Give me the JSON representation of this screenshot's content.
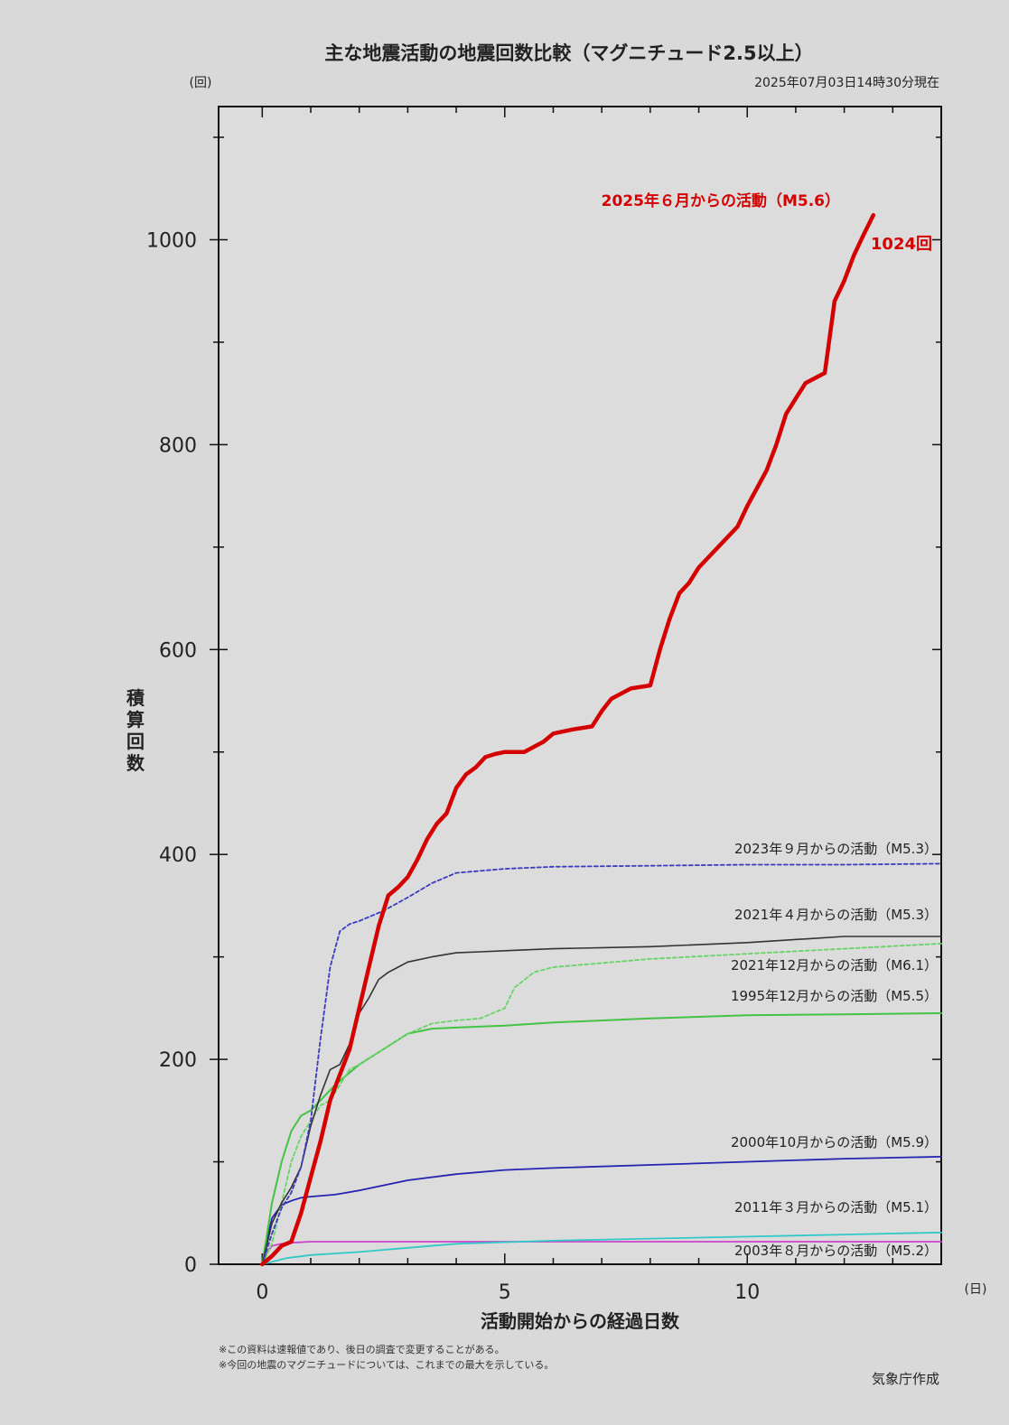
{
  "chart_data": {
    "type": "line",
    "title": "主な地震活動の地震回数比較（マグニチュード2.5以上）",
    "timestamp": "2025年07月03日14時30分現在",
    "xlabel": "活動開始からの経過日数",
    "ylabel": "積算回数",
    "x_unit": "(日)",
    "y_unit": "(回)",
    "xlim": [
      -0.9,
      14
    ],
    "ylim": [
      0,
      1130
    ],
    "x_ticks": [
      0,
      5,
      10
    ],
    "y_ticks": [
      0,
      200,
      400,
      600,
      800,
      1000
    ],
    "grid": false,
    "notes": [
      "※この資料は速報値であり、後日の調査で変更することがある。",
      "※今回の地震のマグニチュードについては、これまでの最大を示している。"
    ],
    "credit": "気象庁作成",
    "series": [
      {
        "name": "2025年６月からの活動（M5.6）",
        "end_label": "1024回",
        "color": "#d40000",
        "dash": "solid",
        "width": 4.5,
        "x": [
          0,
          0.2,
          0.4,
          0.6,
          0.8,
          1.0,
          1.2,
          1.4,
          1.6,
          1.8,
          2.0,
          2.2,
          2.4,
          2.6,
          2.8,
          3.0,
          3.2,
          3.4,
          3.6,
          3.8,
          4.0,
          4.2,
          4.4,
          4.6,
          4.8,
          5.0,
          5.4,
          5.8,
          6.0,
          6.4,
          6.8,
          7.0,
          7.2,
          7.6,
          8.0,
          8.2,
          8.4,
          8.6,
          8.8,
          9.0,
          9.4,
          9.8,
          10.0,
          10.4,
          10.6,
          10.8,
          11.0,
          11.2,
          11.6,
          11.8,
          12.0,
          12.2,
          12.4,
          12.6
        ],
        "y": [
          0,
          8,
          18,
          22,
          50,
          85,
          120,
          160,
          185,
          210,
          250,
          290,
          330,
          360,
          368,
          378,
          395,
          415,
          430,
          440,
          465,
          478,
          485,
          495,
          498,
          500,
          500,
          510,
          518,
          522,
          525,
          540,
          552,
          562,
          565,
          600,
          630,
          655,
          665,
          680,
          700,
          720,
          740,
          775,
          800,
          830,
          845,
          860,
          870,
          940,
          960,
          985,
          1005,
          1024
        ]
      },
      {
        "name": "2023年９月からの活動（M5.3）",
        "color": "#3b3bbf",
        "dash": "4 3",
        "width": 1.8,
        "x": [
          0,
          0.2,
          0.4,
          0.6,
          0.8,
          1.0,
          1.2,
          1.4,
          1.6,
          1.8,
          2.0,
          2.5,
          3.0,
          3.5,
          4.0,
          5.0,
          6.0,
          8.0,
          10.0,
          12.0,
          14.0
        ],
        "y": [
          0,
          30,
          55,
          70,
          95,
          140,
          220,
          290,
          325,
          332,
          335,
          345,
          358,
          372,
          382,
          386,
          388,
          389,
          390,
          390,
          391
        ]
      },
      {
        "name": "2021年４月からの活動（M5.3）",
        "color": "#333333",
        "dash": "solid",
        "width": 1.6,
        "x": [
          0,
          0.2,
          0.4,
          0.6,
          0.8,
          1.0,
          1.2,
          1.4,
          1.6,
          1.8,
          2.0,
          2.2,
          2.4,
          2.6,
          2.8,
          3.0,
          3.5,
          4.0,
          4.5,
          5.0,
          6.0,
          8.0,
          10.0,
          12.0,
          14.0
        ],
        "y": [
          0,
          40,
          60,
          75,
          95,
          135,
          165,
          190,
          195,
          215,
          245,
          260,
          278,
          285,
          290,
          295,
          300,
          304,
          305,
          306,
          308,
          310,
          314,
          320,
          320
        ]
      },
      {
        "name": "2021年12月からの活動（M6.1）",
        "color": "#66d466",
        "dash": "4 3",
        "width": 1.8,
        "x": [
          0,
          0.2,
          0.4,
          0.6,
          0.8,
          1.0,
          1.2,
          1.4,
          1.6,
          1.8,
          2.0,
          2.5,
          3.0,
          3.5,
          4.0,
          4.5,
          5.0,
          5.2,
          5.6,
          6.0,
          8.0,
          10.0,
          12.0,
          14.0
        ],
        "y": [
          0,
          20,
          60,
          100,
          125,
          140,
          155,
          160,
          175,
          190,
          195,
          210,
          225,
          235,
          238,
          240,
          250,
          270,
          285,
          290,
          298,
          303,
          308,
          313
        ]
      },
      {
        "name": "1995年12月からの活動（M5.5）",
        "color": "#44c244",
        "dash": "solid",
        "width": 2.0,
        "x": [
          0,
          0.1,
          0.2,
          0.4,
          0.6,
          0.8,
          1.0,
          1.2,
          1.5,
          2.0,
          2.5,
          3.0,
          3.5,
          4.0,
          5.0,
          6.0,
          8.0,
          10.0,
          12.0,
          14.0
        ],
        "y": [
          0,
          30,
          60,
          100,
          130,
          145,
          150,
          160,
          175,
          195,
          210,
          225,
          230,
          231,
          233,
          236,
          240,
          243,
          244,
          245
        ]
      },
      {
        "name": "2000年10月からの活動（M5.9）",
        "color": "#2424b0",
        "dash": "solid",
        "width": 1.8,
        "x": [
          0,
          0.1,
          0.2,
          0.4,
          0.6,
          0.8,
          1.0,
          1.5,
          2.0,
          3.0,
          4.0,
          5.0,
          6.0,
          8.0,
          10.0,
          12.0,
          14.0
        ],
        "y": [
          0,
          25,
          45,
          58,
          62,
          65,
          66,
          68,
          72,
          82,
          88,
          92,
          94,
          97,
          100,
          103,
          105
        ]
      },
      {
        "name": "2011年３月からの活動（M5.1）",
        "color": "#33c8c8",
        "dash": "solid",
        "width": 1.8,
        "x": [
          0,
          0.5,
          1.0,
          2.0,
          3.0,
          4.0,
          6.0,
          8.0,
          10.0,
          12.0,
          14.0
        ],
        "y": [
          0,
          6,
          9,
          12,
          16,
          20,
          23,
          25,
          27,
          29,
          31
        ]
      },
      {
        "name": "2003年８月からの活動（M5.2）",
        "color": "#cc44cc",
        "dash": "solid",
        "width": 1.8,
        "x": [
          0,
          0.05,
          0.1,
          0.2,
          0.4,
          0.6,
          1.0,
          2.0,
          4.0,
          8.0,
          12.0,
          14.0
        ],
        "y": [
          0,
          5,
          12,
          18,
          20,
          21,
          22,
          22,
          22,
          22,
          22,
          22
        ]
      }
    ]
  }
}
